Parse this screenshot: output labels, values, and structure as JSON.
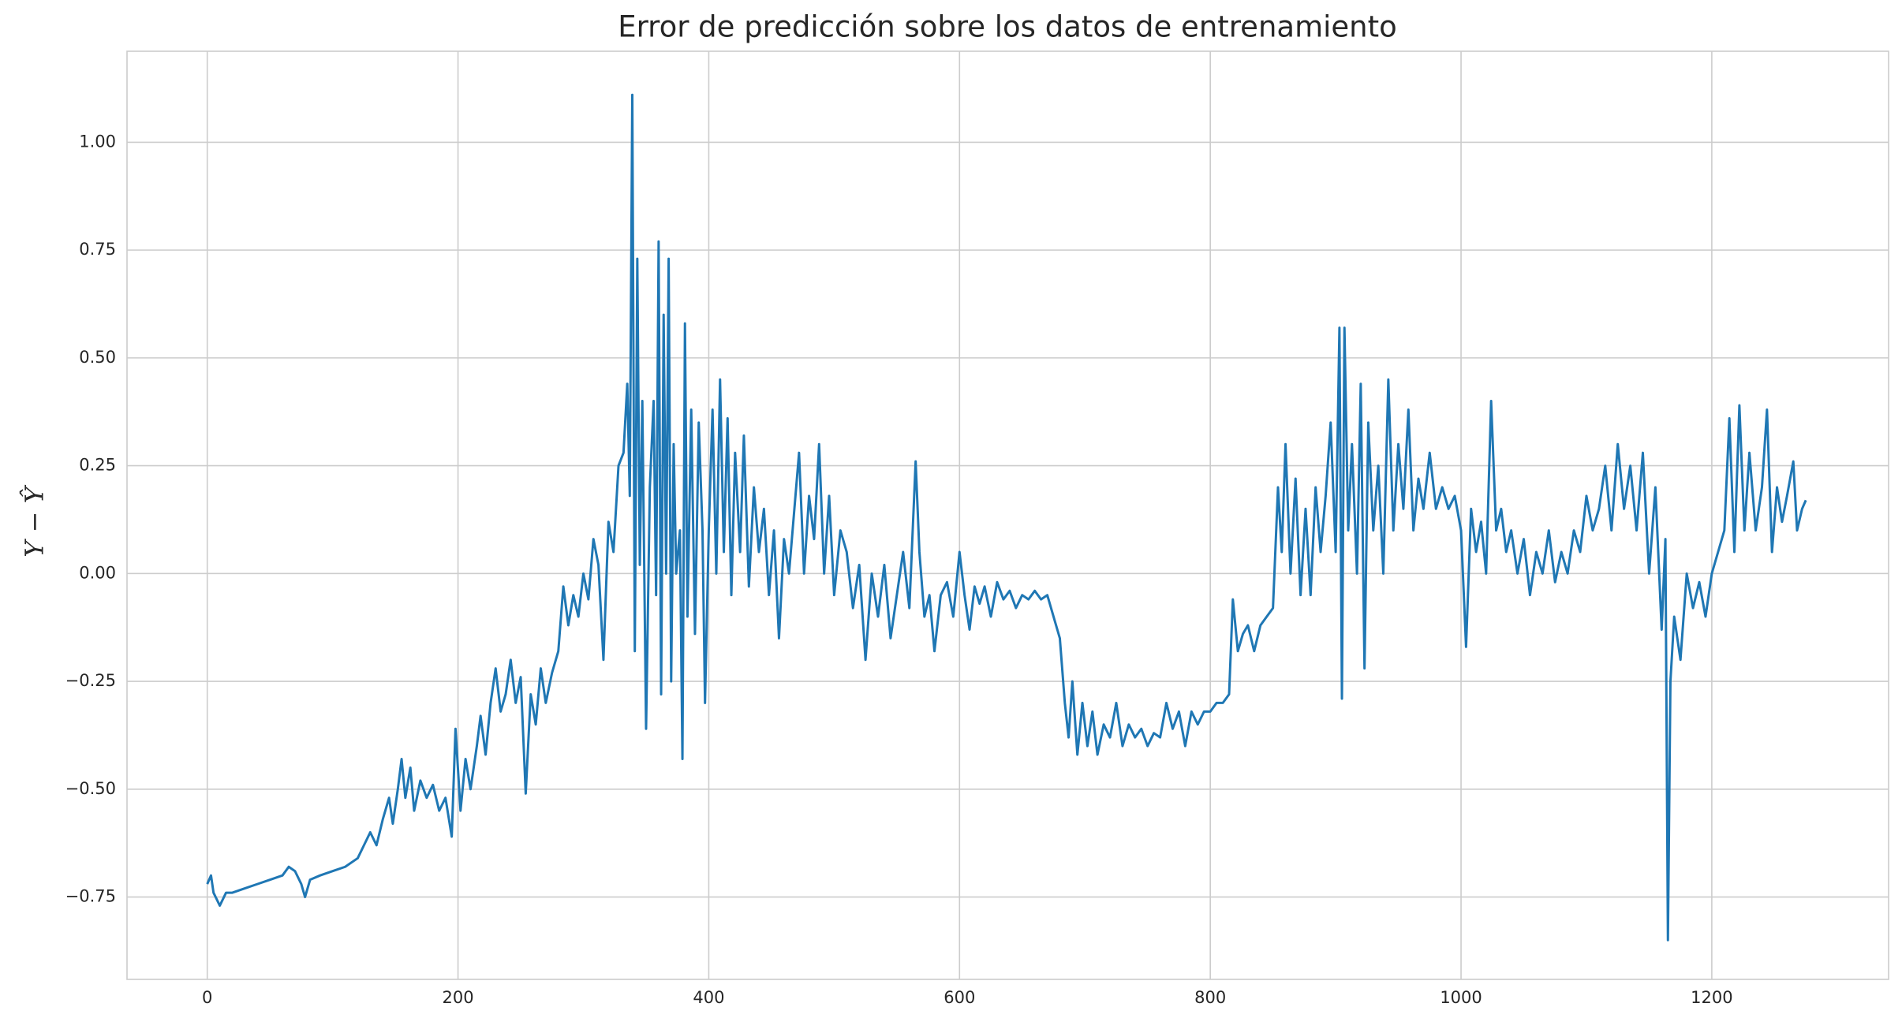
{
  "chart_data": {
    "type": "line",
    "title": "Error de predicción sobre los datos de entrenamiento",
    "ylabel": "Y − Ŷ",
    "color": "#1f77b4",
    "grid": true,
    "xlim": [
      -64,
      1341
    ],
    "ylim": [
      -0.941,
      1.211
    ],
    "xticks": [
      0,
      200,
      400,
      600,
      800,
      1000,
      1200
    ],
    "yticks": [
      {
        "value": -0.75,
        "label": "−0.75"
      },
      {
        "value": -0.5,
        "label": "−0.50"
      },
      {
        "value": -0.25,
        "label": "−0.25"
      },
      {
        "value": 0,
        "label": "0.00"
      },
      0.25,
      {
        "value": 0.5,
        "label": "0.50"
      },
      0.75,
      {
        "value": 1,
        "label": "1.00"
      }
    ],
    "x": [
      0,
      3,
      5,
      10,
      15,
      20,
      30,
      40,
      50,
      60,
      65,
      70,
      75,
      78,
      82,
      90,
      100,
      110,
      120,
      125,
      130,
      135,
      140,
      145,
      148,
      152,
      155,
      158,
      162,
      165,
      170,
      175,
      180,
      185,
      190,
      195,
      198,
      202,
      206,
      210,
      215,
      218,
      222,
      226,
      230,
      234,
      238,
      242,
      246,
      250,
      254,
      258,
      262,
      266,
      270,
      275,
      280,
      284,
      288,
      292,
      296,
      300,
      304,
      308,
      312,
      316,
      320,
      324,
      328,
      332,
      335,
      337,
      339,
      341,
      343,
      345,
      347,
      350,
      353,
      356,
      358,
      360,
      362,
      364,
      366,
      368,
      370,
      372,
      374,
      377,
      379,
      381,
      383,
      386,
      389,
      392,
      395,
      397,
      400,
      403,
      406,
      409,
      412,
      415,
      418,
      421,
      425,
      428,
      432,
      436,
      440,
      444,
      448,
      452,
      456,
      460,
      464,
      468,
      472,
      476,
      480,
      484,
      488,
      492,
      496,
      500,
      505,
      510,
      515,
      520,
      525,
      530,
      535,
      540,
      545,
      550,
      555,
      560,
      565,
      568,
      572,
      576,
      580,
      585,
      590,
      595,
      600,
      604,
      608,
      612,
      616,
      620,
      625,
      630,
      635,
      640,
      645,
      650,
      655,
      660,
      665,
      670,
      675,
      680,
      684,
      687,
      690,
      694,
      698,
      702,
      706,
      710,
      715,
      720,
      725,
      730,
      735,
      740,
      745,
      750,
      755,
      760,
      765,
      770,
      775,
      780,
      785,
      790,
      795,
      800,
      805,
      810,
      815,
      818,
      822,
      826,
      830,
      835,
      840,
      845,
      850,
      854,
      857,
      860,
      864,
      868,
      872,
      876,
      880,
      884,
      888,
      892,
      896,
      900,
      903,
      905,
      907,
      910,
      913,
      917,
      920,
      923,
      926,
      930,
      934,
      938,
      942,
      946,
      950,
      954,
      958,
      962,
      966,
      970,
      975,
      980,
      985,
      990,
      995,
      1000,
      1004,
      1008,
      1012,
      1016,
      1020,
      1024,
      1028,
      1032,
      1036,
      1040,
      1045,
      1050,
      1055,
      1060,
      1065,
      1070,
      1075,
      1080,
      1085,
      1090,
      1095,
      1100,
      1105,
      1110,
      1115,
      1120,
      1125,
      1130,
      1135,
      1140,
      1145,
      1150,
      1155,
      1160,
      1163,
      1165,
      1167,
      1170,
      1175,
      1180,
      1185,
      1190,
      1195,
      1200,
      1205,
      1210,
      1214,
      1218,
      1222,
      1226,
      1230,
      1235,
      1240,
      1244,
      1248,
      1252,
      1256,
      1260,
      1265,
      1268,
      1272,
      1275
    ],
    "values": [
      -0.72,
      -0.7,
      -0.74,
      -0.77,
      -0.74,
      -0.74,
      -0.73,
      -0.72,
      -0.71,
      -0.7,
      -0.68,
      -0.69,
      -0.72,
      -0.75,
      -0.71,
      -0.7,
      -0.69,
      -0.68,
      -0.66,
      -0.63,
      -0.6,
      -0.63,
      -0.57,
      -0.52,
      -0.58,
      -0.5,
      -0.43,
      -0.52,
      -0.45,
      -0.55,
      -0.48,
      -0.52,
      -0.49,
      -0.55,
      -0.52,
      -0.61,
      -0.36,
      -0.55,
      -0.43,
      -0.5,
      -0.4,
      -0.33,
      -0.42,
      -0.3,
      -0.22,
      -0.32,
      -0.28,
      -0.2,
      -0.3,
      -0.24,
      -0.51,
      -0.28,
      -0.35,
      -0.22,
      -0.3,
      -0.23,
      -0.18,
      -0.03,
      -0.12,
      -0.05,
      -0.1,
      0.0,
      -0.06,
      0.08,
      0.02,
      -0.2,
      0.12,
      0.05,
      0.25,
      0.28,
      0.44,
      0.18,
      1.11,
      -0.18,
      0.73,
      0.02,
      0.4,
      -0.36,
      0.2,
      0.4,
      -0.05,
      0.77,
      -0.28,
      0.6,
      0.0,
      0.73,
      -0.25,
      0.3,
      0.0,
      0.1,
      -0.43,
      0.58,
      -0.1,
      0.38,
      -0.14,
      0.35,
      0.1,
      -0.3,
      0.1,
      0.38,
      0.0,
      0.45,
      0.05,
      0.36,
      -0.05,
      0.28,
      0.05,
      0.32,
      -0.03,
      0.2,
      0.05,
      0.15,
      -0.05,
      0.1,
      -0.15,
      0.08,
      0.0,
      0.14,
      0.28,
      0.0,
      0.18,
      0.08,
      0.3,
      0.0,
      0.18,
      -0.05,
      0.1,
      0.05,
      -0.08,
      0.02,
      -0.2,
      0.0,
      -0.1,
      0.02,
      -0.15,
      -0.05,
      0.05,
      -0.08,
      0.26,
      0.05,
      -0.1,
      -0.05,
      -0.18,
      -0.05,
      -0.02,
      -0.1,
      0.05,
      -0.05,
      -0.13,
      -0.03,
      -0.07,
      -0.03,
      -0.1,
      -0.02,
      -0.06,
      -0.04,
      -0.08,
      -0.05,
      -0.06,
      -0.04,
      -0.06,
      -0.05,
      -0.1,
      -0.15,
      -0.3,
      -0.38,
      -0.25,
      -0.42,
      -0.3,
      -0.4,
      -0.32,
      -0.42,
      -0.35,
      -0.38,
      -0.3,
      -0.4,
      -0.35,
      -0.38,
      -0.36,
      -0.4,
      -0.37,
      -0.38,
      -0.3,
      -0.36,
      -0.32,
      -0.4,
      -0.32,
      -0.35,
      -0.32,
      -0.32,
      -0.3,
      -0.3,
      -0.28,
      -0.06,
      -0.18,
      -0.14,
      -0.12,
      -0.18,
      -0.12,
      -0.1,
      -0.08,
      0.2,
      0.05,
      0.3,
      0.0,
      0.22,
      -0.05,
      0.15,
      -0.05,
      0.2,
      0.05,
      0.18,
      0.35,
      0.05,
      0.57,
      -0.29,
      0.57,
      0.1,
      0.3,
      0.0,
      0.44,
      -0.22,
      0.35,
      0.1,
      0.25,
      0.0,
      0.45,
      0.1,
      0.3,
      0.15,
      0.38,
      0.1,
      0.22,
      0.15,
      0.28,
      0.15,
      0.2,
      0.15,
      0.18,
      0.1,
      -0.17,
      0.15,
      0.05,
      0.12,
      0.0,
      0.4,
      0.1,
      0.15,
      0.05,
      0.1,
      0.0,
      0.08,
      -0.05,
      0.05,
      0.0,
      0.1,
      -0.02,
      0.05,
      0.0,
      0.1,
      0.05,
      0.18,
      0.1,
      0.15,
      0.25,
      0.1,
      0.3,
      0.15,
      0.25,
      0.1,
      0.28,
      0.0,
      0.2,
      -0.13,
      0.08,
      -0.85,
      -0.25,
      -0.1,
      -0.2,
      0.0,
      -0.08,
      -0.02,
      -0.1,
      0.0,
      0.05,
      0.1,
      0.36,
      0.05,
      0.39,
      0.1,
      0.28,
      0.1,
      0.2,
      0.38,
      0.05,
      0.2,
      0.12,
      0.18,
      0.26,
      0.1,
      0.15,
      0.17
    ]
  }
}
